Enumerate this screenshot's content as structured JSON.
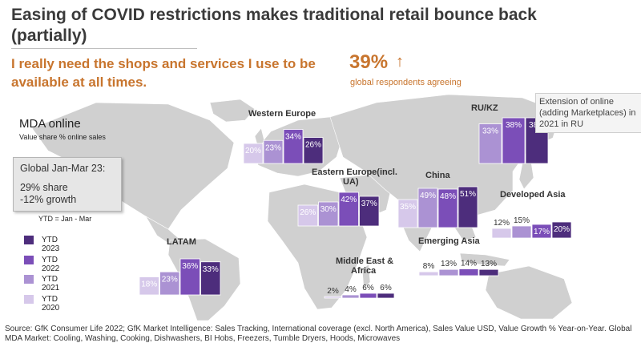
{
  "title": "Easing of COVID restrictions makes traditional retail bounce back (partially)",
  "quote": "I really need the shops and services I use to be available at all times.",
  "stat": {
    "value": "39%",
    "arrow": "↑",
    "note": "global respondents agreeing"
  },
  "callout": "Extension of online (adding Marketplaces) in 2021 in RU",
  "mda": {
    "title": "MDA online",
    "subtitle": "Value share % online sales"
  },
  "global_box": {
    "line1": "Global Jan-Mar 23:",
    "line2": "29% share",
    "line3": "-12% growth"
  },
  "ytd_note": "YTD = Jan - Mar",
  "legend": [
    {
      "label": "YTD 2023",
      "color": "#4d2d7c"
    },
    {
      "label": "YTD 2022",
      "color": "#7b4eb8"
    },
    {
      "label": "YTD 2021",
      "color": "#ab92d3"
    },
    {
      "label": "YTD 2020",
      "color": "#d6c8ea"
    }
  ],
  "source": "Source: GfK Consumer Life 2022; GfK Market Intelligence: Sales Tracking, International coverage (excl. North America), Sales Value USD, Value Growth % Year-on-Year. Global MDA Market: Cooling, Washing, Cooking, Dishwashers, BI Hobs, Freezers, Tumble Dryers, Hoods, Microwaves",
  "colors": {
    "map": "#d0d0d0",
    "accent": "#c8752e"
  },
  "chart_data": {
    "type": "bar",
    "categories": [
      "YTD 2020",
      "YTD 2021",
      "YTD 2022",
      "YTD 2023"
    ],
    "value_unit": "%",
    "regions": [
      {
        "name": "Western Europe",
        "values": [
          20,
          23,
          34,
          26
        ]
      },
      {
        "name": "RU/KZ",
        "values": [
          null,
          33,
          38,
          38
        ]
      },
      {
        "name": "Eastern Europe(incl. UA)",
        "values": [
          26,
          30,
          42,
          37
        ]
      },
      {
        "name": "China",
        "values": [
          35,
          49,
          48,
          51
        ]
      },
      {
        "name": "Developed Asia",
        "values": [
          12,
          15,
          17,
          20
        ]
      },
      {
        "name": "LATAM",
        "values": [
          18,
          23,
          36,
          33
        ]
      },
      {
        "name": "Emerging Asia",
        "values": [
          8,
          13,
          14,
          13
        ]
      },
      {
        "name": "Middle East & Africa",
        "values": [
          2,
          4,
          6,
          6
        ]
      }
    ]
  }
}
